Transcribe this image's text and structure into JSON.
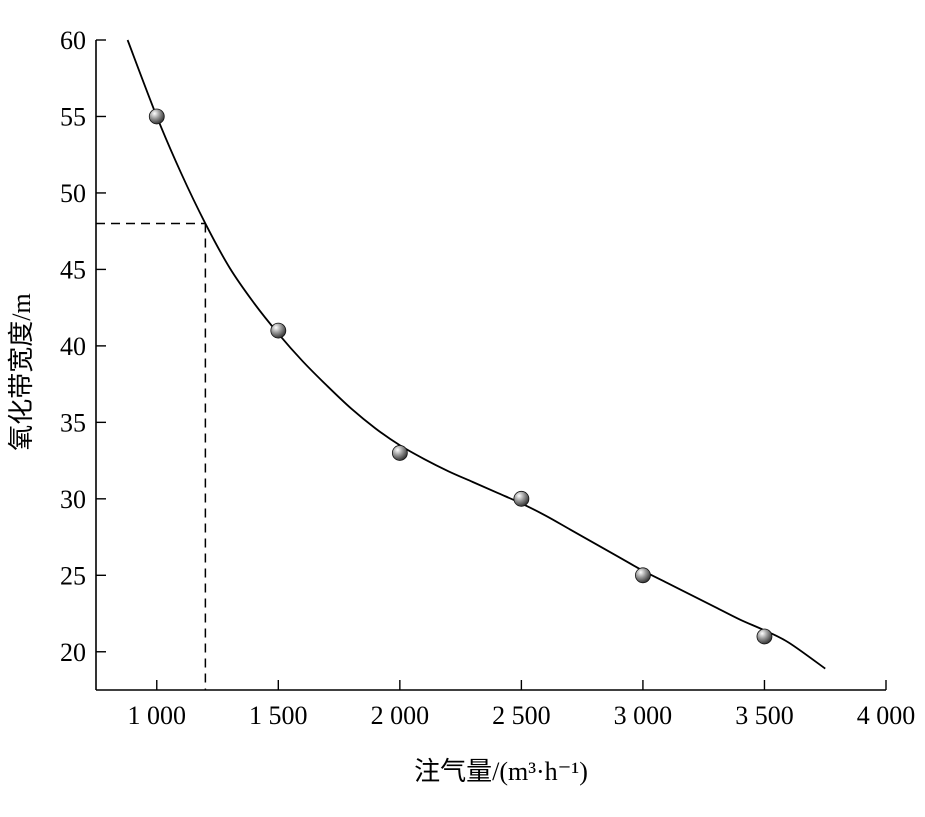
{
  "chart_data": {
    "type": "scatter",
    "xlabel": "注气量/(m³·h⁻¹)",
    "ylabel": "氧化带宽度/m",
    "xlim": [
      750,
      4000
    ],
    "ylim": [
      17.5,
      60
    ],
    "x_ticks": [
      1000,
      1500,
      2000,
      2500,
      3000,
      3500,
      4000
    ],
    "x_tick_labels": [
      "1 000",
      "1 500",
      "2 000",
      "2 500",
      "3 000",
      "3 500",
      "4 000"
    ],
    "y_ticks": [
      20,
      25,
      30,
      35,
      40,
      45,
      50,
      55,
      60
    ],
    "y_tick_labels": [
      "20",
      "25",
      "30",
      "35",
      "40",
      "45",
      "50",
      "55",
      "60"
    ],
    "grid": false,
    "series": [
      {
        "points": [
          {
            "x": 1000,
            "y": 55
          },
          {
            "x": 1500,
            "y": 41
          },
          {
            "x": 2000,
            "y": 33
          },
          {
            "x": 2500,
            "y": 30
          },
          {
            "x": 3000,
            "y": 25
          },
          {
            "x": 3500,
            "y": 21
          }
        ]
      }
    ],
    "fit_curve": {
      "x": [
        880,
        1000,
        1100,
        1200,
        1300,
        1400,
        1500,
        1600,
        1700,
        1800,
        1900,
        2000,
        2100,
        2200,
        2300,
        2400,
        2500,
        2600,
        2700,
        2800,
        2900,
        3000,
        3100,
        3200,
        3300,
        3400,
        3500,
        3600,
        3750
      ],
      "y": [
        60,
        55,
        51.3,
        48,
        45.1,
        42.8,
        40.8,
        39.0,
        37.4,
        35.9,
        34.6,
        33.5,
        32.6,
        31.8,
        31.1,
        30.4,
        29.7,
        28.9,
        28.0,
        27.1,
        26.2,
        25.3,
        24.5,
        23.7,
        22.9,
        22.1,
        21.4,
        20.6,
        18.9
      ]
    },
    "reference_point": {
      "x": 1200,
      "y": 48
    }
  }
}
